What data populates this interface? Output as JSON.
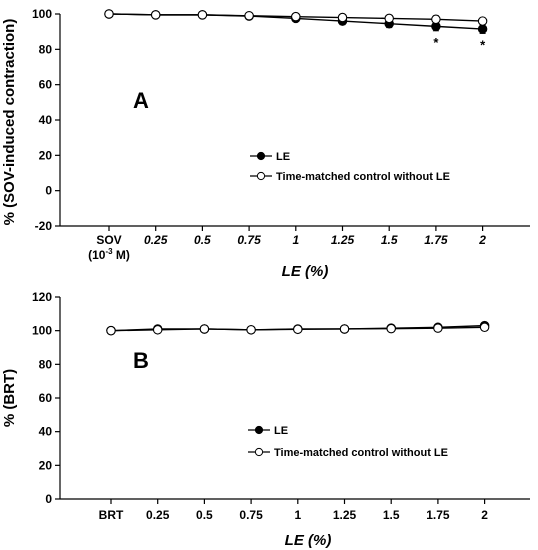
{
  "chart_data": [
    {
      "type": "line",
      "panel": "A",
      "xlabel": "LE (%)",
      "ylabel": "% (SOV-induced contraction)",
      "ylim": [
        -20,
        100
      ],
      "yticks": [
        -20,
        0,
        20,
        40,
        60,
        80,
        100
      ],
      "categories": [
        "SOV",
        "0.25",
        "0.5",
        "0.75",
        "1",
        "1.25",
        "1.5",
        "1.75",
        "2"
      ],
      "category_sublabel": "(10-3 M)",
      "grid": false,
      "legend_position": "center-right",
      "series": [
        {
          "name": "LE",
          "marker": "filled-circle",
          "values": [
            100,
            99.5,
            99.5,
            98.8,
            97.5,
            96,
            94.5,
            93,
            91.5
          ],
          "errors": [
            0.5,
            0.5,
            0.5,
            0.8,
            1.5,
            2,
            2.2,
            2.5,
            2.5
          ]
        },
        {
          "name": "Time-matched control without LE",
          "marker": "open-circle",
          "values": [
            100,
            99.5,
            99.5,
            99,
            98.5,
            98,
            97.5,
            97,
            96
          ],
          "errors": [
            0.5,
            0.5,
            0.5,
            0.8,
            1,
            1.5,
            1.5,
            2,
            1.5
          ]
        }
      ],
      "annotations": [
        {
          "text": "*",
          "category": "1.75"
        },
        {
          "text": "*",
          "category": "2"
        }
      ]
    },
    {
      "type": "line",
      "panel": "B",
      "xlabel": "LE (%)",
      "ylabel": "% (BRT)",
      "ylim": [
        0,
        120
      ],
      "yticks": [
        0,
        20,
        40,
        60,
        80,
        100,
        120
      ],
      "categories": [
        "BRT",
        "0.25",
        "0.5",
        "0.75",
        "1",
        "1.25",
        "1.5",
        "1.75",
        "2"
      ],
      "grid": false,
      "legend_position": "center-right",
      "series": [
        {
          "name": "LE",
          "marker": "filled-circle",
          "values": [
            100,
            101,
            101,
            100.5,
            101,
            101,
            101.5,
            102,
            103
          ],
          "errors": [
            0.5,
            0.5,
            0.5,
            0.5,
            0.5,
            0.5,
            0.5,
            0.5,
            0.8
          ]
        },
        {
          "name": "Time-matched control without LE",
          "marker": "open-circle",
          "values": [
            100,
            100.5,
            101,
            100.5,
            100.8,
            101,
            101.2,
            101.5,
            102
          ],
          "errors": [
            0.5,
            0.5,
            0.5,
            0.5,
            0.5,
            0.5,
            0.5,
            0.5,
            0.5
          ]
        }
      ]
    }
  ]
}
